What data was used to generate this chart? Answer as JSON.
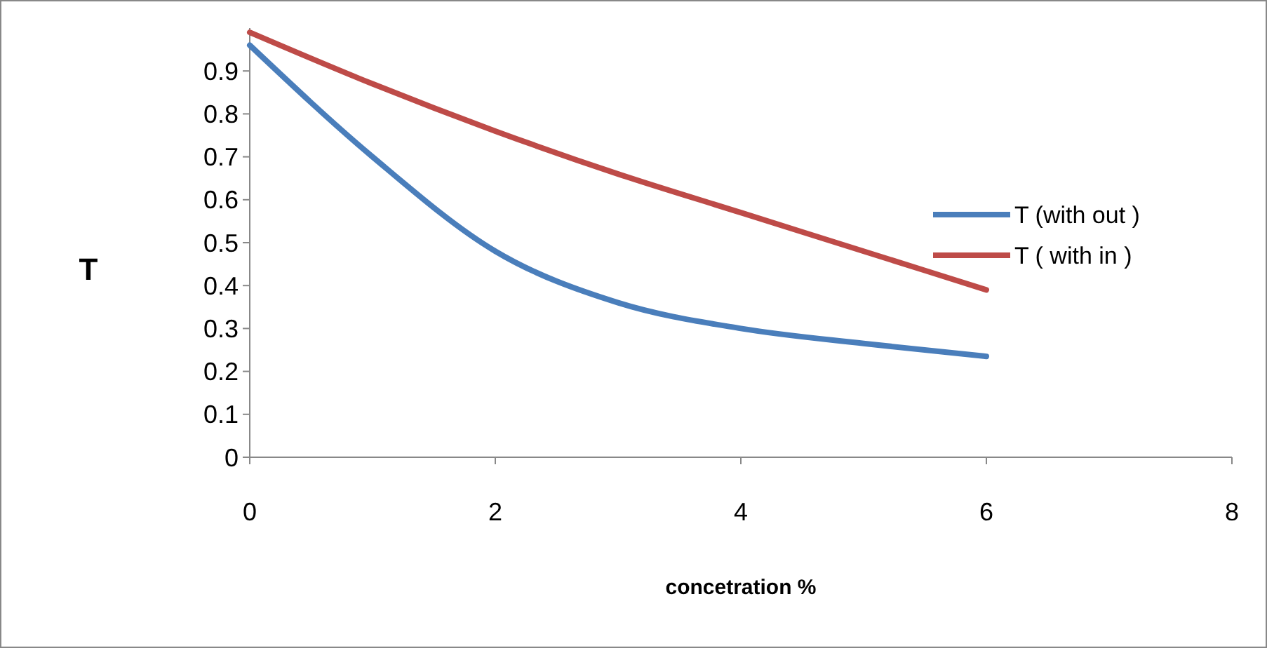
{
  "chart_data": {
    "type": "line",
    "xlabel": "concetration %",
    "ylabel": "T",
    "x": [
      0,
      1,
      2,
      3,
      4,
      5,
      6
    ],
    "series": [
      {
        "name": "T (with out )",
        "color": "#4a7ebb",
        "values": [
          0.96,
          0.7,
          0.48,
          0.36,
          0.3,
          0.265,
          0.235
        ]
      },
      {
        "name": "T ( with in )",
        "color": "#be4b48",
        "values": [
          0.99,
          0.87,
          0.76,
          0.66,
          0.57,
          0.48,
          0.39
        ]
      }
    ],
    "xlim": [
      0,
      8
    ],
    "xticks": [
      0,
      2,
      4,
      6,
      8
    ],
    "ylim": [
      0,
      1
    ],
    "yticks": [
      0,
      0.1,
      0.2,
      0.3,
      0.4,
      0.5,
      0.6,
      0.7,
      0.8,
      0.9
    ],
    "grid": false,
    "legend": "top right",
    "marker": "none",
    "line_style": "solid"
  }
}
